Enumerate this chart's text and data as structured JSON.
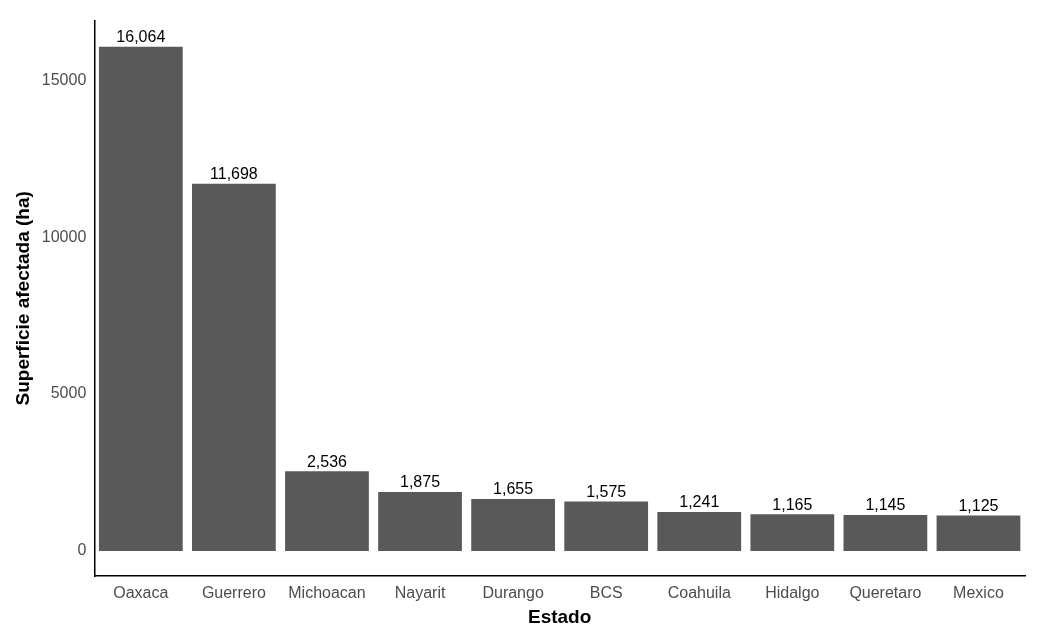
{
  "chart_data": {
    "type": "bar",
    "xlabel": "Estado",
    "ylabel": "Superficie afectada (ha)",
    "categories": [
      "Oaxaca",
      "Guerrero",
      "Michoacan",
      "Nayarit",
      "Durango",
      "BCS",
      "Coahuila",
      "Hidalgo",
      "Queretaro",
      "Mexico"
    ],
    "values": [
      16064,
      11698,
      2536,
      1875,
      1655,
      1575,
      1241,
      1165,
      1145,
      1125
    ],
    "value_labels": [
      "16,064",
      "11,698",
      "2,536",
      "1,875",
      "1,655",
      "1,575",
      "1,241",
      "1,165",
      "1,145",
      "1,125"
    ],
    "color": "#595959",
    "ylim": [
      -800,
      16900
    ],
    "yticks": [
      0,
      5000,
      10000,
      15000
    ],
    "grid": false,
    "legend": false
  }
}
